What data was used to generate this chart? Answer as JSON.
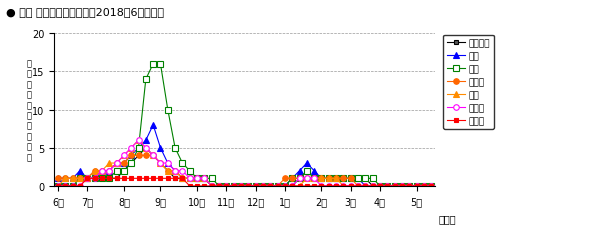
{
  "title": "● 県内 保健所別発生動向（2018年6月以降）",
  "ylabel_chars": [
    "定",
    "点",
    "当",
    "た",
    "り",
    "患",
    "者",
    "報",
    "告",
    "数"
  ],
  "xlabel_note": "（週）",
  "month_labels": [
    "6月",
    "7月",
    "8月",
    "9月",
    "10月",
    "11月",
    "12月",
    "1月",
    "2月",
    "3月",
    "4月",
    "5月"
  ],
  "ylim": [
    0,
    20
  ],
  "yticks": [
    0,
    5,
    10,
    15,
    20
  ],
  "series": [
    {
      "name": "四国中央",
      "color": "#000000",
      "marker": "s",
      "markersize": 3,
      "markerfacecolor": "#555555",
      "markeredgecolor": "#000000",
      "linestyle": "-",
      "data": [
        1,
        1,
        1,
        1,
        1,
        1,
        1,
        1,
        1,
        2,
        3,
        4,
        5,
        4,
        3,
        2,
        1,
        1,
        1,
        1,
        1,
        0,
        0,
        0,
        0,
        0,
        0,
        0,
        0,
        0,
        0,
        0,
        0,
        1,
        1,
        1,
        1,
        1,
        1,
        1,
        1,
        1,
        1,
        0,
        0,
        0,
        0,
        0,
        0,
        0,
        0,
        0
      ]
    },
    {
      "name": "西条",
      "color": "#0000FF",
      "marker": "^",
      "markersize": 4,
      "markerfacecolor": "#0000FF",
      "markeredgecolor": "#0000FF",
      "linestyle": "-",
      "data": [
        1,
        1,
        1,
        2,
        1,
        2,
        2,
        2,
        3,
        3,
        4,
        5,
        6,
        8,
        5,
        3,
        2,
        1,
        1,
        1,
        1,
        0,
        0,
        0,
        0,
        0,
        0,
        0,
        0,
        0,
        0,
        0,
        1,
        2,
        3,
        2,
        1,
        1,
        1,
        1,
        1,
        1,
        0,
        0,
        0,
        0,
        0,
        0,
        0,
        0,
        0,
        0
      ]
    },
    {
      "name": "今治",
      "color": "#008000",
      "marker": "s",
      "markersize": 4,
      "markerfacecolor": "#FFFFFF",
      "markeredgecolor": "#008000",
      "linestyle": "-",
      "data": [
        0,
        0,
        0,
        1,
        1,
        1,
        1,
        1,
        2,
        2,
        3,
        5,
        14,
        16,
        16,
        10,
        5,
        3,
        2,
        1,
        1,
        1,
        0,
        0,
        0,
        0,
        0,
        0,
        0,
        0,
        0,
        0,
        1,
        1,
        2,
        1,
        1,
        1,
        1,
        1,
        1,
        1,
        1,
        1,
        0,
        0,
        0,
        0,
        0,
        0,
        0,
        0
      ]
    },
    {
      "name": "松山市",
      "color": "#FF6600",
      "marker": "o",
      "markersize": 4,
      "markerfacecolor": "#FF6600",
      "markeredgecolor": "#FF6600",
      "linestyle": "-",
      "data": [
        1,
        1,
        1,
        1,
        1,
        2,
        2,
        2,
        3,
        3,
        4,
        4,
        4,
        4,
        3,
        2,
        2,
        1,
        1,
        1,
        1,
        0,
        0,
        0,
        0,
        0,
        0,
        0,
        0,
        0,
        0,
        1,
        1,
        1,
        1,
        1,
        1,
        1,
        1,
        1,
        1,
        0,
        0,
        0,
        0,
        0,
        0,
        0,
        0,
        0,
        0,
        0
      ]
    },
    {
      "name": "中予",
      "color": "#FF8C00",
      "marker": "^",
      "markersize": 4,
      "markerfacecolor": "#FF8C00",
      "markeredgecolor": "#FF8C00",
      "linestyle": "-",
      "data": [
        0,
        1,
        1,
        1,
        1,
        2,
        2,
        3,
        3,
        4,
        5,
        6,
        5,
        4,
        3,
        2,
        2,
        1,
        1,
        1,
        1,
        0,
        0,
        0,
        0,
        0,
        0,
        0,
        0,
        0,
        0,
        0,
        0,
        0,
        1,
        1,
        1,
        1,
        1,
        0,
        0,
        0,
        0,
        0,
        0,
        0,
        0,
        0,
        0,
        0,
        0,
        0
      ]
    },
    {
      "name": "八幡浜",
      "color": "#FF00FF",
      "marker": "o",
      "markersize": 4,
      "markerfacecolor": "#FFFFFF",
      "markeredgecolor": "#FF00FF",
      "linestyle": "-",
      "data": [
        0,
        0,
        0,
        0,
        1,
        1,
        2,
        2,
        3,
        4,
        5,
        6,
        5,
        4,
        3,
        3,
        2,
        2,
        1,
        1,
        1,
        0,
        0,
        0,
        0,
        0,
        0,
        0,
        0,
        0,
        0,
        0,
        0,
        1,
        1,
        1,
        0,
        0,
        0,
        0,
        0,
        0,
        0,
        0,
        0,
        0,
        0,
        0,
        0,
        0,
        0,
        0
      ]
    },
    {
      "name": "宇和島",
      "color": "#FF0000",
      "marker": "s",
      "markersize": 3,
      "markerfacecolor": "#FF0000",
      "markeredgecolor": "#FF0000",
      "linestyle": "-",
      "data": [
        0,
        0,
        0,
        0,
        1,
        1,
        1,
        1,
        1,
        1,
        1,
        1,
        1,
        1,
        1,
        1,
        1,
        1,
        0,
        0,
        0,
        0,
        0,
        0,
        0,
        0,
        0,
        0,
        0,
        0,
        0,
        0,
        0,
        0,
        0,
        0,
        0,
        0,
        0,
        0,
        0,
        0,
        0,
        0,
        0,
        0,
        0,
        0,
        0,
        0,
        0,
        0
      ]
    }
  ],
  "num_weeks": 52,
  "month_tick_positions": [
    0,
    4,
    9,
    14,
    19,
    23,
    27,
    31,
    36,
    40,
    44,
    49
  ]
}
